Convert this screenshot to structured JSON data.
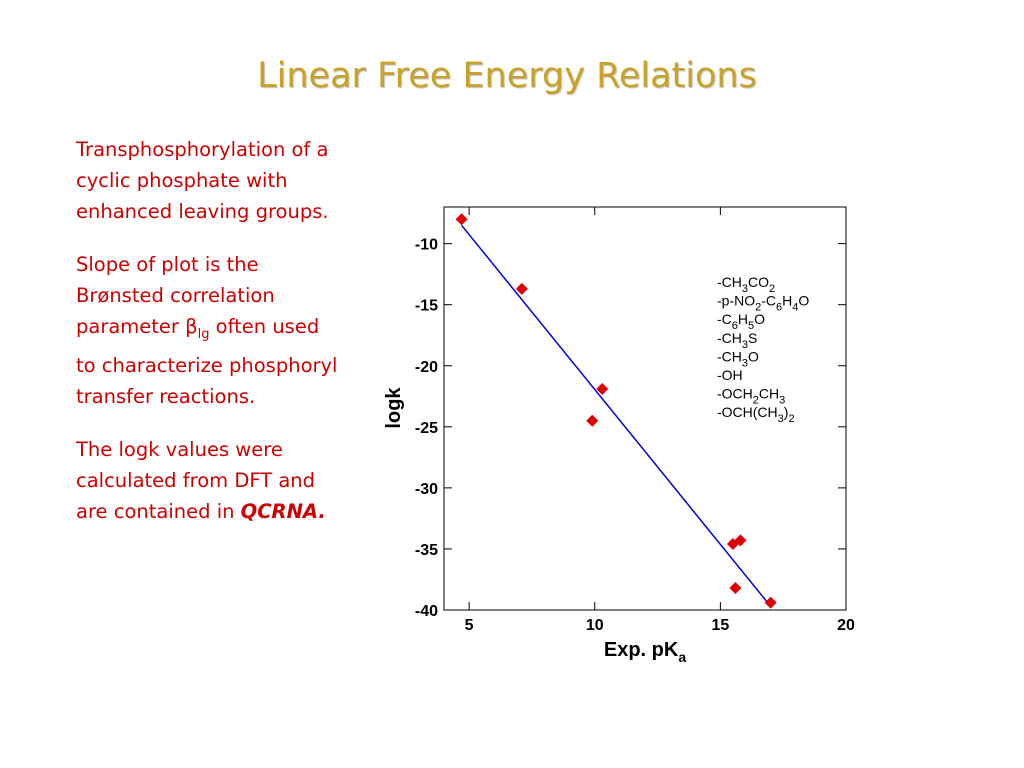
{
  "title": "Linear Free Energy Relations",
  "paragraphs": [
    {
      "text": "Transphosphorylation of a cyclic phosphate with enhanced leaving groups."
    },
    {
      "text": "Slope of plot is the Brønsted correlation parameter β",
      "sub": "lg",
      "after": " often used to characterize phosphoryl transfer reactions."
    },
    {
      "text": "The logk values were calculated from DFT and are contained in ",
      "emphasis": "QCRNA."
    }
  ],
  "chart_data": {
    "type": "scatter",
    "xlabel": [
      "Exp. pK",
      "a"
    ],
    "ylabel": "logk",
    "x": [
      4.7,
      7.1,
      9.9,
      10.3,
      15.5,
      15.6,
      15.8,
      17.0
    ],
    "values": [
      -8.0,
      -13.7,
      -24.5,
      -21.9,
      -34.6,
      -38.2,
      -34.3,
      -39.4
    ],
    "labels": [
      "-CH3CO2",
      "-p-NO2-C6H4O",
      "-C6H5O",
      "-CH3S",
      "-CH3O",
      "-OH",
      "-OCH2CH3",
      "-OCH(CH3)2"
    ],
    "color": "#e00000",
    "fit": {
      "x": [
        4.7,
        17.0
      ],
      "values": [
        -8.5,
        -39.7
      ],
      "color": "#0000dd"
    },
    "xlim": [
      4,
      20
    ],
    "xticks": [
      5,
      10,
      15,
      20
    ],
    "ylim": [
      -40,
      -7
    ],
    "yticks": [
      -10,
      -15,
      -20,
      -25,
      -30,
      -35,
      -40
    ]
  }
}
